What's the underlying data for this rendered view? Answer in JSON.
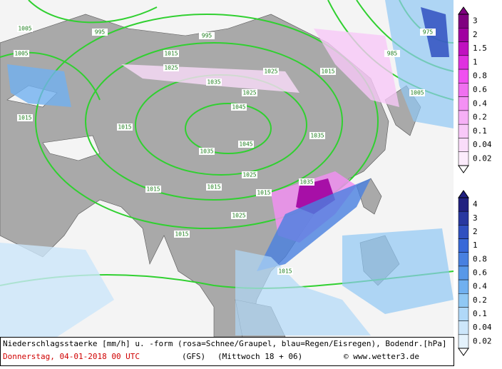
{
  "legend_snow": {
    "labels": [
      "3",
      "2",
      "1.5",
      "1",
      "0.8",
      "0.6",
      "0.4",
      "0.2",
      "0.1",
      "0.04",
      "0.02"
    ],
    "colors": [
      "#800080",
      "#a000a0",
      "#c010c0",
      "#e030e0",
      "#f050f0",
      "#f070f0",
      "#f490f4",
      "#f6b0f6",
      "#f8c8f8",
      "#fadcfa",
      "#fcecfc"
    ]
  },
  "legend_rain": {
    "labels": [
      "4",
      "3",
      "2",
      "1",
      "0.8",
      "0.6",
      "0.4",
      "0.2",
      "0.1",
      "0.04",
      "0.02"
    ],
    "colors": [
      "#202080",
      "#2838a0",
      "#3050c0",
      "#3868d8",
      "#4880e0",
      "#5898e8",
      "#70b0f0",
      "#90c8f4",
      "#b0d8f8",
      "#cce6fa",
      "#e4f2fc"
    ]
  },
  "isobars": [
    "1005",
    "995",
    "1015",
    "1015",
    "1025",
    "1035",
    "1045",
    "1035",
    "1025",
    "1015",
    "1005",
    "995",
    "985",
    "975",
    "1015",
    "1025",
    "1035",
    "1015",
    "1015",
    "1025",
    "1015",
    "1035",
    "1025",
    "1045",
    "1005",
    "1015",
    "1015"
  ],
  "footer": {
    "description": "Niederschlagsstaerke [mm/h] u. -form (rosa=Schnee/Graupel, blau=Regen/Eisregen), Bodendr.[hPa]",
    "date": "Donnerstag, 04-01-2018  00 UTC",
    "model": "(GFS)",
    "run": "(Mittwoch 18 + 06)",
    "credit": "© www.wetter3.de"
  }
}
